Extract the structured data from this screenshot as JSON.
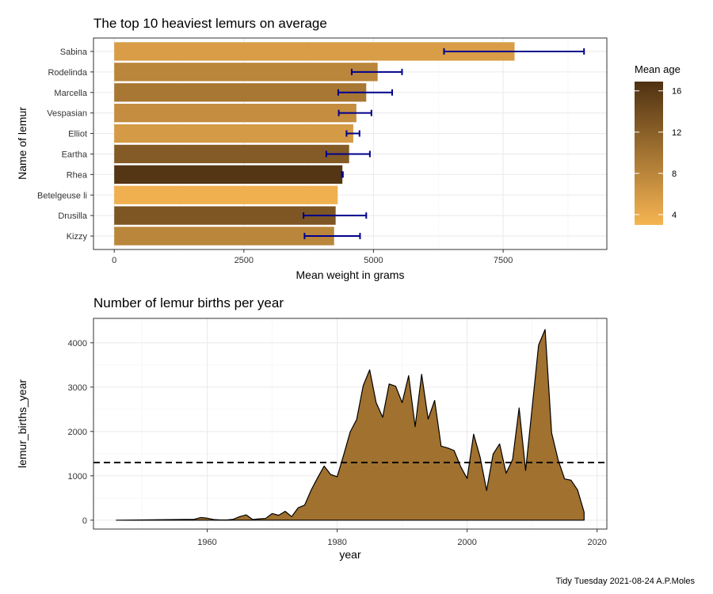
{
  "chart_data": [
    {
      "type": "bar",
      "orientation": "horizontal",
      "title": "The top 10 heaviest lemurs on average",
      "xlabel": "Mean weight in grams",
      "ylabel": "Name of lemur",
      "xlim": [
        -400,
        9500
      ],
      "x_ticks": [
        0,
        2500,
        5000,
        7500
      ],
      "categories": [
        "Sabina",
        "Rodelinda",
        "Marcella",
        "Vespasian",
        "Elliot",
        "Eartha",
        "Rhea",
        "Betelgeuse li",
        "Drusilla",
        "Kizzy"
      ],
      "values": [
        7720,
        5080,
        4860,
        4670,
        4610,
        4530,
        4400,
        4310,
        4270,
        4240
      ],
      "error_low": [
        6360,
        4580,
        4320,
        4330,
        4480,
        4090,
        4390,
        null,
        3650,
        3670
      ],
      "error_high": [
        9060,
        5550,
        5360,
        4960,
        4730,
        4930,
        4410,
        null,
        4860,
        4740
      ],
      "mean_age": [
        5.5,
        8.0,
        9.5,
        7.2,
        5.8,
        12.5,
        16.5,
        3.5,
        13.0,
        8.0
      ],
      "error_color": "#00008B",
      "grid": true,
      "legend": {
        "title": "Mean age",
        "position": "right",
        "ticks": [
          4,
          8,
          12,
          16
        ],
        "range": [
          3.0,
          16.9
        ],
        "color_low": "#F6B552",
        "color_high": "#4F3112"
      }
    },
    {
      "type": "area",
      "title": "Number of lemur births per year",
      "xlabel": "year",
      "ylabel": "lemur_births_year",
      "xlim": [
        1942.5,
        2021.5
      ],
      "ylim": [
        -200,
        4550
      ],
      "x_ticks": [
        1960,
        1980,
        2000,
        2020
      ],
      "y_ticks": [
        0,
        1000,
        2000,
        3000,
        4000
      ],
      "fill_color": "#A0712F",
      "line_color": "#000000",
      "reference_line": 1300,
      "grid": true,
      "x": [
        1946,
        1958,
        1959,
        1960,
        1961,
        1962,
        1963,
        1964,
        1965,
        1966,
        1967,
        1968,
        1969,
        1970,
        1971,
        1972,
        1973,
        1974,
        1975,
        1976,
        1977,
        1978,
        1979,
        1980,
        1981,
        1982,
        1983,
        1984,
        1985,
        1986,
        1987,
        1988,
        1989,
        1990,
        1991,
        1992,
        1993,
        1994,
        1995,
        1996,
        1997,
        1998,
        1999,
        2000,
        2001,
        2002,
        2003,
        2004,
        2005,
        2006,
        2007,
        2008,
        2009,
        2010,
        2011,
        2012,
        2013,
        2014,
        2015,
        2016,
        2017,
        2018
      ],
      "y": [
        0,
        20,
        60,
        45,
        15,
        5,
        5,
        20,
        80,
        120,
        15,
        30,
        40,
        150,
        110,
        200,
        80,
        280,
        340,
        680,
        960,
        1220,
        1030,
        980,
        1470,
        1990,
        2270,
        3030,
        3390,
        2650,
        2320,
        3070,
        3020,
        2650,
        3260,
        2110,
        3290,
        2280,
        2700,
        1670,
        1630,
        1570,
        1210,
        940,
        1940,
        1420,
        670,
        1490,
        1720,
        1060,
        1370,
        2530,
        1120,
        2530,
        3950,
        4300,
        1970,
        1360,
        930,
        900,
        680,
        180
      ]
    }
  ],
  "caption": "Tidy Tuesday 2021-08-24 A.P.Moles"
}
